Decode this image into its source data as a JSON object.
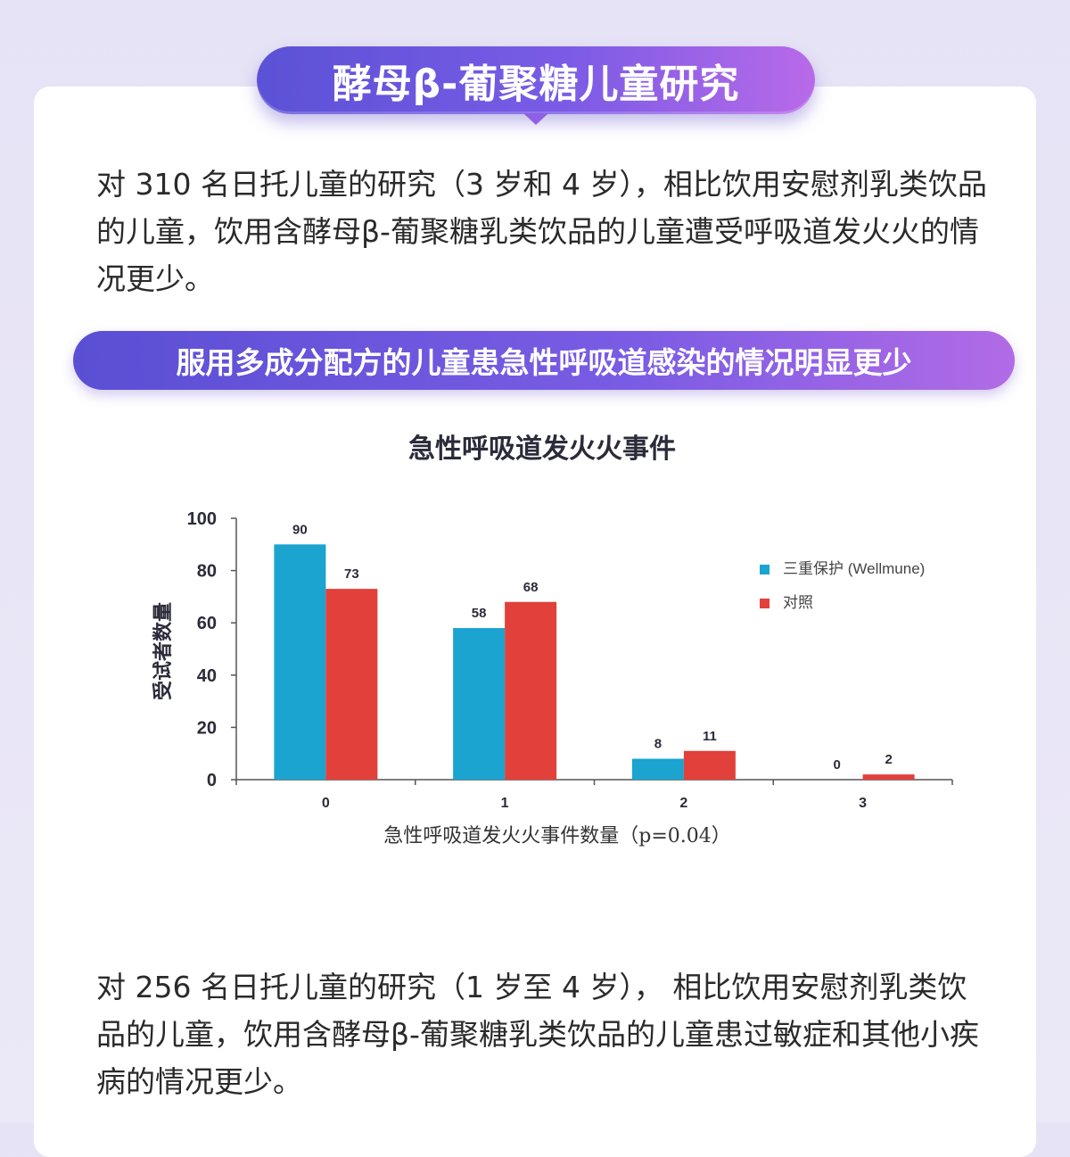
{
  "title": "酵母β-葡聚糖儿童研究",
  "para1": "对 310 名日托儿童的研究（3 岁和 4 岁），相比饮用安慰剂乳类饮品的儿童，饮用含酵母β-葡聚糖乳类饮品的儿童遭受呼吸道发火火的情况更少。",
  "banner": "服用多成分配方的儿童患急性呼吸道感染的情况明显更少",
  "para2": "对 256 名日托儿童的研究（1 岁至 4 岁）， 相比饮用安慰剂乳类饮品的儿童，饮用含酵母β-葡聚糖乳类饮品的儿童患过敏症和其他小疾病的情况更少。",
  "colors": {
    "wellmune": "#1aa4cf",
    "control": "#e2403a",
    "accent": "#6a55dc"
  },
  "chart_data": {
    "type": "bar",
    "title": "急性呼吸道发火火事件",
    "xlabel": "急性呼吸道发火火事件数量（p=0.04）",
    "ylabel": "受试者数量",
    "categories": [
      "0",
      "1",
      "2",
      "3"
    ],
    "yticks": [
      "0",
      "20",
      "40",
      "60",
      "80",
      "100"
    ],
    "ylim": [
      0,
      100
    ],
    "series": [
      {
        "name": "三重保护 (Wellmune)",
        "values": [
          90,
          58,
          8,
          0
        ]
      },
      {
        "name": "对照",
        "values": [
          73,
          68,
          11,
          2
        ]
      }
    ],
    "legend_position": "top-right",
    "grid": false
  }
}
